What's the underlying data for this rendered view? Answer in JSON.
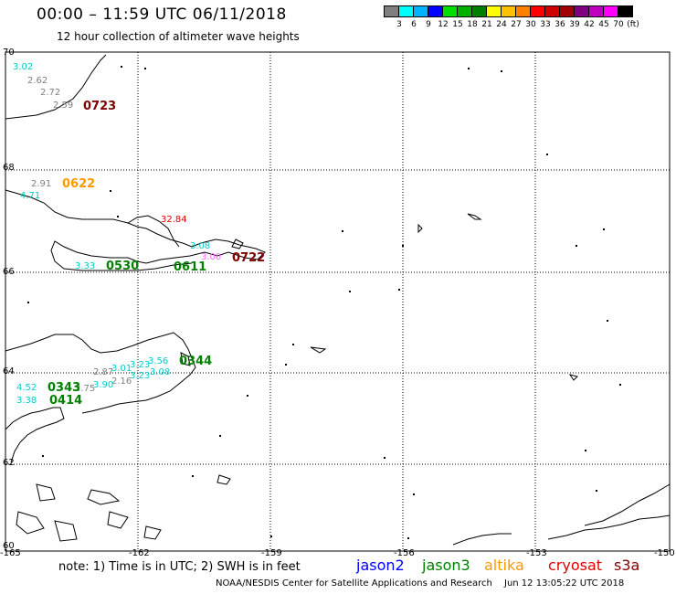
{
  "header": {
    "title": "00:00 – 11:59 UTC 06/11/2018",
    "subtitle": "12 hour collection of altimeter wave heights"
  },
  "scale": {
    "colors": [
      "#7f7f7f",
      "#00ffff",
      "#00b3ff",
      "#0000ff",
      "#00e000",
      "#00b000",
      "#008000",
      "#ffff00",
      "#ffc000",
      "#ff8000",
      "#ff0000",
      "#d00000",
      "#a00000",
      "#800080",
      "#c000c0",
      "#ff00ff",
      "#000000"
    ],
    "labels": [
      "3",
      "6",
      "9",
      "12",
      "15",
      "18",
      "21",
      "24",
      "27",
      "30",
      "33",
      "36",
      "39",
      "42",
      "45",
      "70",
      "(ft)"
    ]
  },
  "axes": {
    "latitudes": [
      "70",
      "68",
      "66",
      "64",
      "62",
      "60"
    ],
    "longitudes": [
      "-165",
      "-162",
      "-159",
      "-156",
      "-153",
      "-150"
    ]
  },
  "wave_heights": [
    {
      "text": "3.02",
      "color": "#00cccc"
    },
    {
      "text": "2.62",
      "color": "#808080"
    },
    {
      "text": "2.72",
      "color": "#808080"
    },
    {
      "text": "2.59",
      "color": "#808080"
    },
    {
      "text": "2.91",
      "color": "#808080"
    },
    {
      "text": "4.71",
      "color": "#00cccc"
    },
    {
      "text": "32.84",
      "color": "#e00000"
    },
    {
      "text": "3.08",
      "color": "#00cccc"
    },
    {
      "text": "3.00",
      "color": "#ff66ff"
    },
    {
      "text": "3.33",
      "color": "#00cccc"
    },
    {
      "text": "3.23",
      "color": "#00cccc"
    },
    {
      "text": "3.56",
      "color": "#00cccc"
    },
    {
      "text": "2.87",
      "color": "#808080"
    },
    {
      "text": "3.01",
      "color": "#00cccc"
    },
    {
      "text": "3.23",
      "color": "#00cccc"
    },
    {
      "text": "3.08",
      "color": "#00cccc"
    },
    {
      "text": "2.16",
      "color": "#808080"
    },
    {
      "text": "3.90",
      "color": "#00cccc"
    },
    {
      "text": "4.52",
      "color": "#00cccc"
    },
    {
      "text": "3.38",
      "color": "#00cccc"
    },
    {
      "text": "2.75",
      "color": "#808080"
    }
  ],
  "times": [
    {
      "text": "0723",
      "color": "#800000"
    },
    {
      "text": "0622",
      "color": "#ff9900"
    },
    {
      "text": "0722",
      "color": "#800000"
    },
    {
      "text": "0530",
      "color": "#008000"
    },
    {
      "text": "0611",
      "color": "#008000"
    },
    {
      "text": "0344",
      "color": "#008000"
    },
    {
      "text": "0343",
      "color": "#008000"
    },
    {
      "text": "0414",
      "color": "#008000"
    }
  ],
  "legend": {
    "note": "note: 1) Time is in UTC; 2) SWH is in feet",
    "jason2": "jason2",
    "jason3": "jason3",
    "altika": "altika",
    "cryosat": "cryosat",
    "s3a": "s3a",
    "jason2_color": "#0000ff",
    "jason3_color": "#008000",
    "altika_color": "#ff9900",
    "cryosat_color": "#e00000",
    "s3a_color": "#800000"
  },
  "footer": {
    "credit": "NOAA/NESDIS Center for Satellite Applications and Research",
    "timestamp": "Jun 12 13:05:22 UTC 2018"
  }
}
